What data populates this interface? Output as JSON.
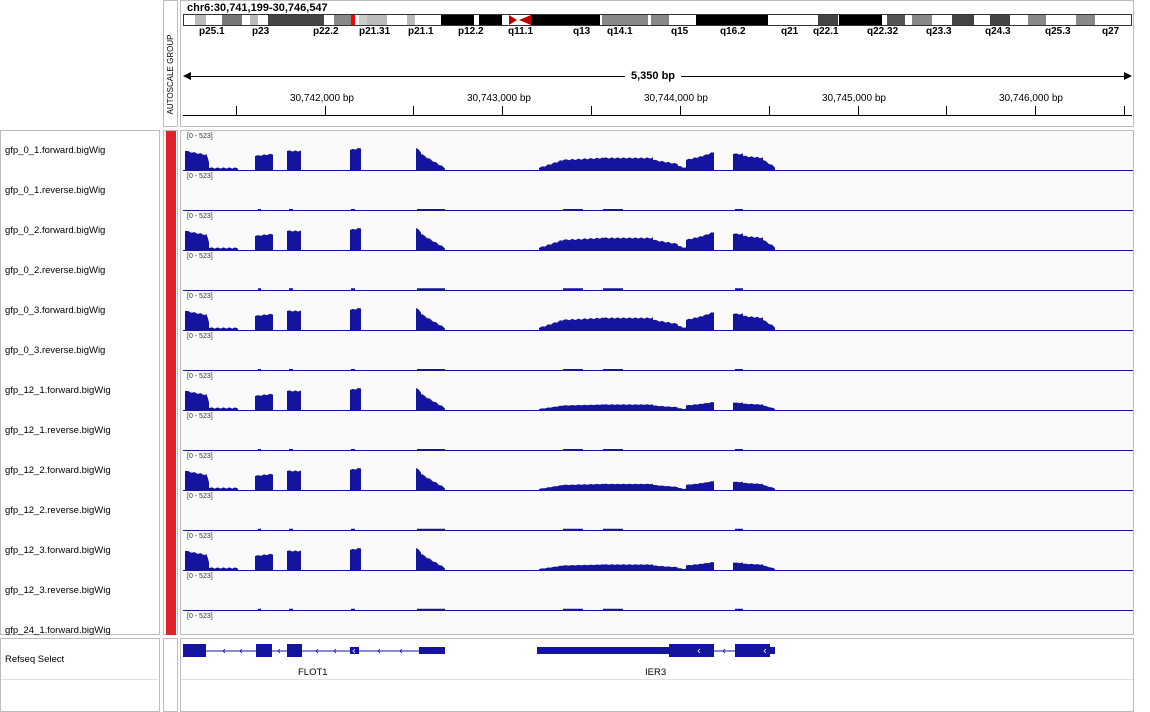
{
  "header": {
    "locus": "chr6:30,741,199-30,746,547",
    "autoscale_label": "AUTOSCALE GROUP",
    "span_label": "5,350 bp",
    "ideogram_labels": [
      "p25.1",
      "p23",
      "p22.2",
      "p21.31",
      "p21.1",
      "p12.2",
      "q11.1",
      "q13",
      "q14.1",
      "q15",
      "q16.2",
      "q21",
      "q22.1",
      "q22.32",
      "q23.3",
      "q24.3",
      "q25.3",
      "q27"
    ],
    "ruler_ticks": [
      "30,742,000 bp",
      "30,743,000 bp",
      "30,744,000 bp",
      "30,745,000 bp",
      "30,746,000 bp"
    ]
  },
  "colors": {
    "signal": "#1414a0",
    "track_color_bar": "#e2212a",
    "centromere": "#c00000",
    "current_position": "#ff0000"
  },
  "tracks": [
    {
      "name": "gfp_0_1.forward.bigWig",
      "range": "[0 - 523]",
      "strand": "forward",
      "scale": 1.0,
      "ier3": 1.0
    },
    {
      "name": "gfp_0_1.reverse.bigWig",
      "range": "[0 - 523]",
      "strand": "reverse",
      "scale": 0.15,
      "ier3": 0.1
    },
    {
      "name": "gfp_0_2.forward.bigWig",
      "range": "[0 - 523]",
      "strand": "forward",
      "scale": 1.0,
      "ier3": 1.0
    },
    {
      "name": "gfp_0_2.reverse.bigWig",
      "range": "[0 - 523]",
      "strand": "reverse",
      "scale": 0.3,
      "ier3": 0.2
    },
    {
      "name": "gfp_0_3.forward.bigWig",
      "range": "[0 - 523]",
      "strand": "forward",
      "scale": 1.0,
      "ier3": 1.0
    },
    {
      "name": "gfp_0_3.reverse.bigWig",
      "range": "[0 - 523]",
      "strand": "reverse",
      "scale": 0.15,
      "ier3": 0.25
    },
    {
      "name": "gfp_12_1.forward.bigWig",
      "range": "[0 - 523]",
      "strand": "forward",
      "scale": 1.0,
      "ier3": 0.45
    },
    {
      "name": "gfp_12_1.reverse.bigWig",
      "range": "[0 - 523]",
      "strand": "reverse",
      "scale": 0.1,
      "ier3": 0.1
    },
    {
      "name": "gfp_12_2.forward.bigWig",
      "range": "[0 - 523]",
      "strand": "forward",
      "scale": 1.0,
      "ier3": 0.5
    },
    {
      "name": "gfp_12_2.reverse.bigWig",
      "range": "[0 - 523]",
      "strand": "reverse",
      "scale": 0.2,
      "ier3": 0.2
    },
    {
      "name": "gfp_12_3.forward.bigWig",
      "range": "[0 - 523]",
      "strand": "forward",
      "scale": 1.0,
      "ier3": 0.45
    },
    {
      "name": "gfp_12_3.reverse.bigWig",
      "range": "[0 - 523]",
      "strand": "reverse",
      "scale": 0.2,
      "ier3": 0.1
    },
    {
      "name": "gfp_24_1.forward.bigWig",
      "range": "[0 - 523]",
      "strand": "forward",
      "scale": 0.6,
      "ier3": 0.0
    }
  ],
  "annotation_track": {
    "name": "Refseq Select",
    "genes": [
      "FLOT1",
      "IER3"
    ]
  }
}
